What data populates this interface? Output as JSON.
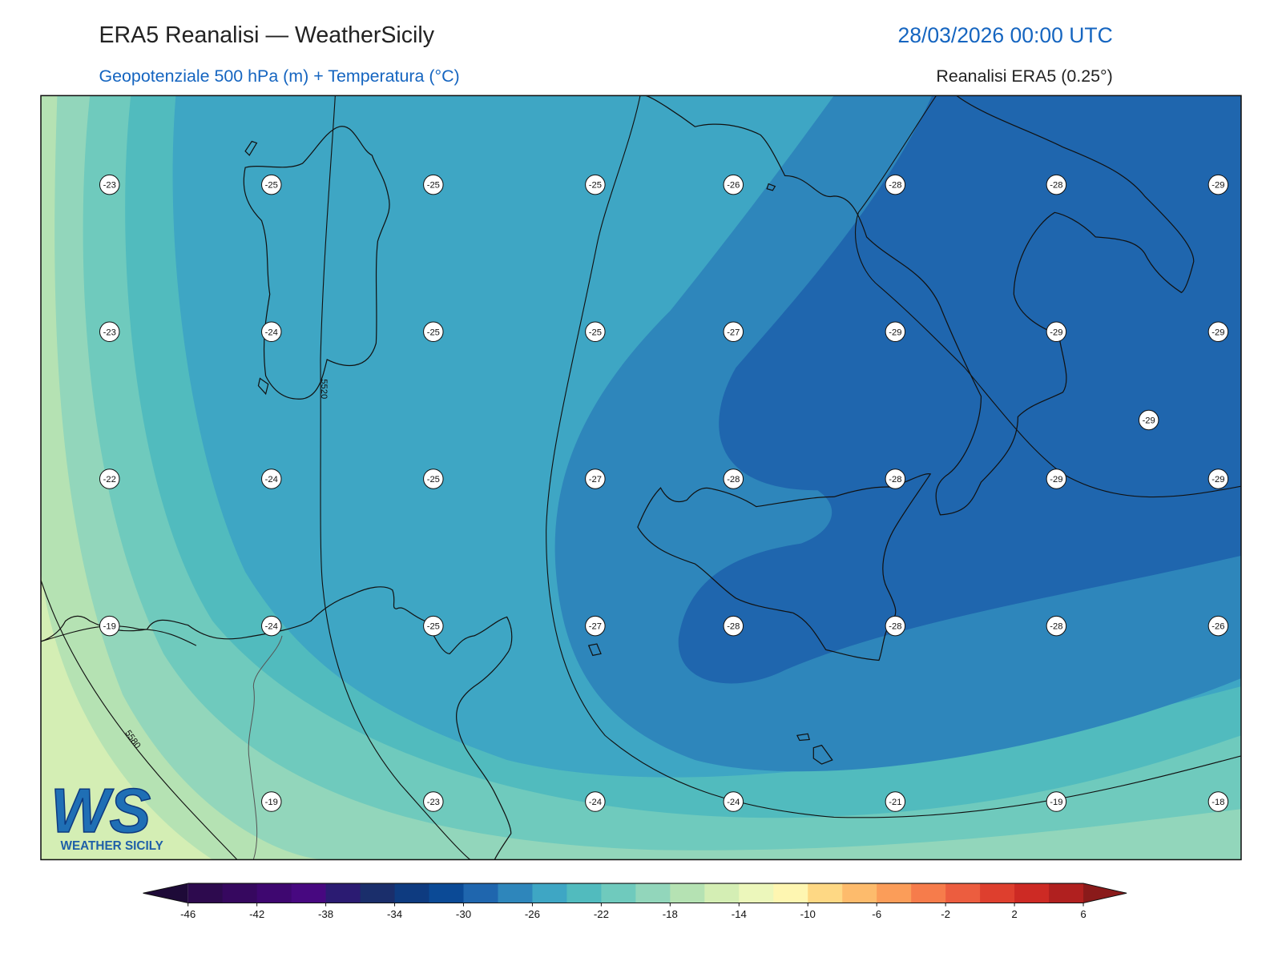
{
  "header": {
    "title": "ERA5 Reanalisi — WeatherSicily",
    "datetime": "28/03/2026 00:00 UTC",
    "subtitle": "Geopotenziale 500 hPa (m) + Temperatura (°C)",
    "source": "Reanalisi ERA5 (0.25°)"
  },
  "map": {
    "temperature_rows": [
      [
        -23,
        -25,
        -25,
        -25,
        -26,
        -28,
        -28,
        -29
      ],
      [
        -23,
        -24,
        -25,
        -25,
        -27,
        -29,
        -29,
        -29
      ],
      [
        -22,
        -24,
        -25,
        -27,
        -28,
        -28,
        -29,
        -29
      ],
      [
        -19,
        -24,
        -25,
        -27,
        -28,
        -28,
        -28,
        -26
      ],
      [
        null,
        -19,
        -23,
        -24,
        -24,
        -21,
        -19,
        -18
      ]
    ],
    "extra_label": -29,
    "contour_labels": [
      5520,
      5580
    ]
  },
  "colorbar": {
    "ticks": [
      -46,
      -42,
      -38,
      -34,
      -30,
      -26,
      -22,
      -18,
      -14,
      -10,
      -6,
      -2,
      2,
      6
    ],
    "colors": [
      "#2d0a4e",
      "#36085f",
      "#3e0770",
      "#470880",
      "#2b1b72",
      "#1a2e6b",
      "#0e3b80",
      "#0b4a96",
      "#1f66ae",
      "#2e86bb",
      "#3ea6c4",
      "#51bbbe",
      "#6fcabd",
      "#92d6bb",
      "#b5e2b3",
      "#d4eeb4",
      "#ecf7bb",
      "#fef6b1",
      "#fed884",
      "#fdbb6c",
      "#fb9d59",
      "#f67c4b",
      "#ec5d3f",
      "#de3f2e",
      "#cd2a24",
      "#b0201f"
    ],
    "extend_colors": [
      "#1e0a38",
      "#8a1a1a"
    ]
  },
  "logo": {
    "mark": "WS",
    "name": "WEATHER SICILY"
  }
}
